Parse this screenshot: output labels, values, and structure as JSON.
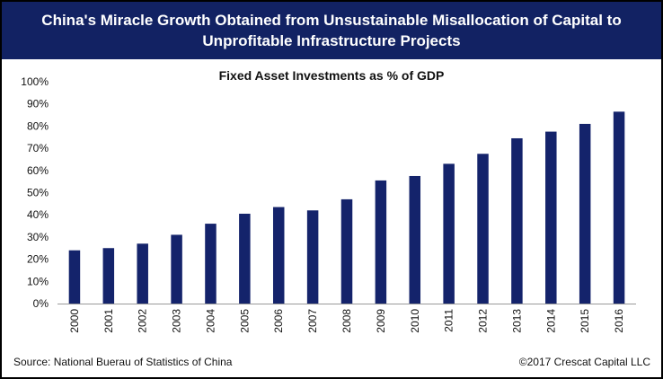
{
  "header": {
    "title_line1": "China's Miracle Growth Obtained from Unsustainable Misallocation of Capital to",
    "title_line2": "Unprofitable Infrastructure Projects",
    "background_color": "#122263"
  },
  "footer": {
    "source": "Source: National Buerau of Statistics of China",
    "copyright": "©2017 Crescat Capital LLC"
  },
  "chart_data": {
    "type": "bar",
    "title": "Fixed Asset Investments as % of GDP",
    "xlabel": "",
    "ylabel": "",
    "categories": [
      "2000",
      "2001",
      "2002",
      "2003",
      "2004",
      "2005",
      "2006",
      "2007",
      "2008",
      "2009",
      "2010",
      "2011",
      "2012",
      "2013",
      "2014",
      "2015",
      "2016"
    ],
    "values": [
      24,
      25,
      27,
      31,
      36,
      40.5,
      43.5,
      42,
      47,
      55.5,
      57.5,
      63,
      67.5,
      74.5,
      77.5,
      81,
      86.5
    ],
    "ylim": [
      0,
      100
    ],
    "yticks": [
      0,
      10,
      20,
      30,
      40,
      50,
      60,
      70,
      80,
      90,
      100
    ],
    "ytick_labels": [
      "0%",
      "10%",
      "20%",
      "30%",
      "40%",
      "50%",
      "60%",
      "70%",
      "80%",
      "90%",
      "100%"
    ],
    "bar_color": "#14236b",
    "grid": false,
    "legend": false
  }
}
